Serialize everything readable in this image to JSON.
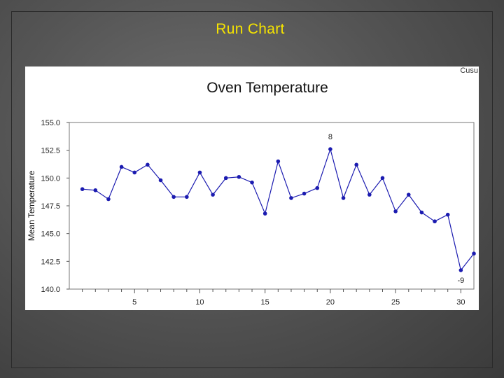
{
  "slide": {
    "title": "Run Chart"
  },
  "panel": {
    "corner_label": "Cusu"
  },
  "colors": {
    "title": "#f5e300",
    "series": "#1b1bb0",
    "background": "#555555"
  },
  "chart_data": {
    "type": "line",
    "title": "Oven Temperature",
    "xlabel": "",
    "ylabel": "Mean Temperature",
    "xlim": [
      0,
      31
    ],
    "ylim": [
      140.0,
      155.0
    ],
    "x_ticks": [
      5,
      10,
      15,
      20,
      25,
      30
    ],
    "y_ticks": [
      "140.0",
      "142.5",
      "145.0",
      "147.5",
      "150.0",
      "152.5",
      "155.0"
    ],
    "grid": false,
    "series": [
      {
        "x": [
          1,
          2,
          3,
          4,
          5,
          6,
          7,
          8,
          9,
          10,
          11,
          12,
          13,
          14,
          15,
          16,
          17,
          18,
          19,
          20,
          21,
          22,
          23,
          24,
          25,
          26,
          27,
          28,
          29,
          30,
          31
        ],
        "values": [
          149.0,
          148.9,
          148.1,
          151.0,
          150.5,
          151.2,
          149.8,
          148.3,
          148.3,
          150.5,
          148.5,
          150.0,
          150.1,
          149.6,
          146.8,
          151.5,
          148.2,
          148.6,
          149.1,
          152.6,
          148.2,
          151.2,
          148.5,
          150.0,
          147.0,
          148.5,
          146.9,
          146.1,
          146.7,
          141.7,
          143.2
        ]
      }
    ],
    "annotations": [
      {
        "x": 20,
        "y": 152.6,
        "text": "8"
      },
      {
        "x": 30,
        "y": 141.7,
        "text": "-9"
      }
    ]
  }
}
